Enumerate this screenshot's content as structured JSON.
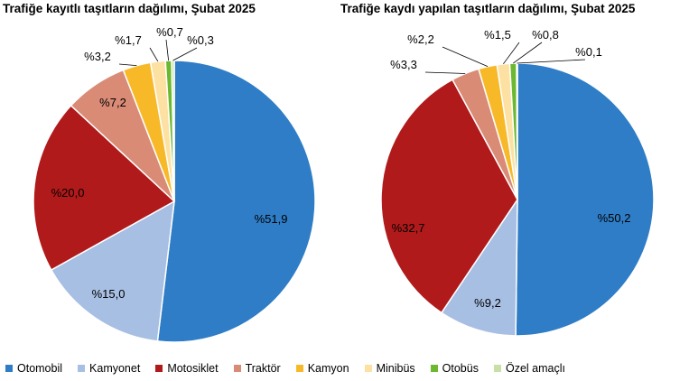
{
  "chart_data": [
    {
      "type": "pie",
      "title": "Trafiğe kayıtlı taşıtların dağılımı, Şubat 2025",
      "categories": [
        "Otomobil",
        "Kamyonet",
        "Motosiklet",
        "Traktör",
        "Kamyon",
        "Minibüs",
        "Otobüs",
        "Özel amaçlı"
      ],
      "values": [
        51.9,
        15.0,
        20.0,
        7.2,
        3.2,
        1.7,
        0.7,
        0.3
      ],
      "labels": [
        "%51,9",
        "%15,0",
        "%20,0",
        "%7,2",
        "%3,2",
        "%1,7",
        "%0,7",
        "%0,3"
      ]
    },
    {
      "type": "pie",
      "title": "Trafiğe kaydı yapılan taşıtların dağılımı, Şubat 2025",
      "categories": [
        "Otomobil",
        "Kamyonet",
        "Motosiklet",
        "Traktör",
        "Kamyon",
        "Minibüs",
        "Otobüs",
        "Özel amaçlı"
      ],
      "values": [
        50.2,
        9.2,
        32.7,
        3.3,
        2.2,
        1.5,
        0.8,
        0.1
      ],
      "labels": [
        "%50,2",
        "%9,2",
        "%32,7",
        "%3,3",
        "%2,2",
        "%1,5",
        "%0,8",
        "%0,1"
      ]
    }
  ],
  "legend": {
    "position": "bottom",
    "items": [
      {
        "label": "Otomobil",
        "color": "#2e7dc6"
      },
      {
        "label": "Kamyonet",
        "color": "#a7bfe3"
      },
      {
        "label": "Motosiklet",
        "color": "#b01a1a"
      },
      {
        "label": "Traktör",
        "color": "#d98b76"
      },
      {
        "label": "Kamyon",
        "color": "#f7b928"
      },
      {
        "label": "Minibüs",
        "color": "#fde1a3"
      },
      {
        "label": "Otobüs",
        "color": "#6cb830"
      },
      {
        "label": "Özel amaçlı",
        "color": "#c8e0a8"
      }
    ]
  }
}
